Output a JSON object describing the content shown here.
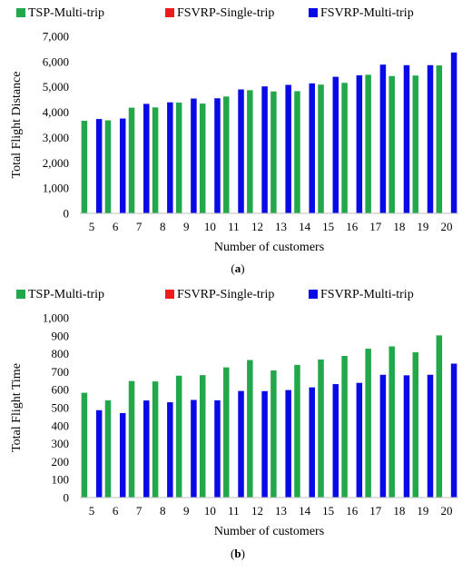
{
  "chart_data": [
    {
      "type": "bar",
      "panel_label": "(a)",
      "panel_letter": "a",
      "categories": [
        "5",
        "6",
        "7",
        "8",
        "9",
        "10",
        "11",
        "12",
        "13",
        "14",
        "15",
        "16",
        "17",
        "18",
        "19",
        "20"
      ],
      "series": [
        {
          "name": "TSP-Multi-trip",
          "color": "#22a84a",
          "values": [
            3660,
            3680,
            4180,
            4190,
            4380,
            4340,
            4620,
            4870,
            4820,
            4830,
            5090,
            5160,
            5480,
            5430,
            5450,
            5850
          ]
        },
        {
          "name": "FSVRP-Single-trip",
          "color": "#ee1c1c",
          "values": [
            0,
            0,
            0,
            0,
            0,
            0,
            0,
            0,
            0,
            0,
            0,
            0,
            0,
            0,
            0,
            0
          ]
        },
        {
          "name": "FSVRP-Multi-trip",
          "color": "#0a0ae6",
          "values": [
            3730,
            3750,
            4330,
            4390,
            4540,
            4550,
            4900,
            5020,
            5080,
            5140,
            5400,
            5460,
            5880,
            5860,
            5860,
            6360
          ]
        }
      ],
      "xlabel": "Number of customers",
      "ylabel": "Total Flight Distance",
      "ylim": [
        0,
        7000
      ],
      "yticks": [
        0,
        1000,
        2000,
        3000,
        4000,
        5000,
        6000,
        7000
      ],
      "ytick_labels": [
        "0",
        "1,000",
        "2,000",
        "3,000",
        "4,000",
        "5,000",
        "6,000",
        "7,000"
      ],
      "legend": "top",
      "grid": false
    },
    {
      "type": "bar",
      "panel_label": "(b)",
      "panel_letter": "b",
      "categories": [
        "5",
        "6",
        "7",
        "8",
        "9",
        "10",
        "11",
        "12",
        "13",
        "14",
        "15",
        "16",
        "17",
        "18",
        "19",
        "20"
      ],
      "series": [
        {
          "name": "TSP-Multi-trip",
          "color": "#22a84a",
          "values": [
            583,
            541,
            648,
            646,
            678,
            681,
            724,
            765,
            707,
            738,
            768,
            788,
            828,
            841,
            808,
            902
          ]
        },
        {
          "name": "FSVRP-Single-trip",
          "color": "#ee1c1c",
          "values": [
            0,
            0,
            0,
            0,
            0,
            0,
            0,
            0,
            0,
            0,
            0,
            0,
            0,
            0,
            0,
            0
          ]
        },
        {
          "name": "FSVRP-Multi-trip",
          "color": "#0a0ae6",
          "values": [
            486,
            470,
            540,
            530,
            543,
            541,
            593,
            592,
            598,
            613,
            631,
            638,
            683,
            680,
            683,
            745
          ]
        }
      ],
      "xlabel": "Number of customers",
      "ylabel": "Total Flight Time",
      "ylim": [
        0,
        1000
      ],
      "yticks": [
        0,
        100,
        200,
        300,
        400,
        500,
        600,
        700,
        800,
        900,
        1000
      ],
      "ytick_labels": [
        "0",
        "100",
        "200",
        "300",
        "400",
        "500",
        "600",
        "700",
        "800",
        "900",
        "1,000"
      ],
      "legend": "top",
      "grid": false
    }
  ]
}
